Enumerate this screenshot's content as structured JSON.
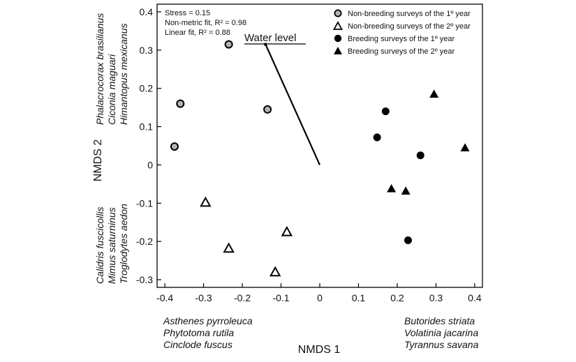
{
  "chart_data": {
    "type": "scatter",
    "xlabel": "NMDS 1",
    "ylabel": "NMDS 2",
    "xlim": [
      -0.42,
      0.42
    ],
    "ylim": [
      -0.32,
      0.42
    ],
    "x_ticks": [
      -0.4,
      -0.3,
      -0.2,
      -0.1,
      0,
      0.1,
      0.2,
      0.3,
      0.4
    ],
    "x_tick_labels": [
      "-0.4",
      "-0.3",
      "-0.2",
      "-0.1",
      "0",
      "0.1",
      "0.2",
      "0.3",
      "0.4"
    ],
    "y_ticks": [
      -0.3,
      -0.2,
      -0.1,
      0,
      0.1,
      0.2,
      0.3,
      0.4
    ],
    "y_tick_labels": [
      "-0.3",
      "-0.2",
      "-0.1",
      "0",
      "0.1",
      "0.2",
      "0.3",
      "0.4"
    ],
    "legend_position": "top-right",
    "stats": [
      "Stress = 0.15",
      "Non-metric fit, R² = 0.98",
      "Linear fit, R² = 0.88"
    ],
    "series": [
      {
        "name": "Non-breeding surveys of the 1º year",
        "marker": "circle",
        "fill": "#b3b3b3",
        "points": [
          [
            -0.235,
            0.315
          ],
          [
            -0.36,
            0.16
          ],
          [
            -0.135,
            0.145
          ],
          [
            -0.375,
            0.048
          ]
        ]
      },
      {
        "name": "Non-breeding surveys of the 2º year",
        "marker": "triangle",
        "fill": "#ffffff",
        "points": [
          [
            -0.295,
            -0.098
          ],
          [
            -0.235,
            -0.218
          ],
          [
            -0.085,
            -0.175
          ],
          [
            -0.115,
            -0.28
          ]
        ]
      },
      {
        "name": "Breeding surveys of the 1º year",
        "marker": "circle",
        "fill": "#000000",
        "points": [
          [
            0.17,
            0.14
          ],
          [
            0.148,
            0.072
          ],
          [
            0.26,
            0.025
          ],
          [
            0.228,
            -0.197
          ]
        ]
      },
      {
        "name": "Breeding surveys of the 2º year",
        "marker": "triangle",
        "fill": "#000000",
        "points": [
          [
            0.295,
            0.185
          ],
          [
            0.375,
            0.045
          ],
          [
            0.185,
            -0.062
          ],
          [
            0.222,
            -0.068
          ]
        ]
      }
    ],
    "vector": {
      "label": "Water level",
      "from": [
        0,
        0
      ],
      "to": [
        -0.14,
        0.315
      ]
    },
    "species_labels": {
      "upper_left": [
        "Phalacrocorax brasilianus",
        "Ciconia maguari",
        "Himantopus mexicanus"
      ],
      "lower_left": [
        "Calidris fuscicollis",
        "Mimus saturninus",
        "Troglodytes aedon"
      ],
      "bottom_left": [
        "Asthenes pyrroleuca",
        "Phytotoma rutila",
        "Cinclode fuscus"
      ],
      "bottom_right": [
        "Butorides striata",
        "Volatinia jacarina",
        "Tyrannus savana"
      ]
    }
  }
}
